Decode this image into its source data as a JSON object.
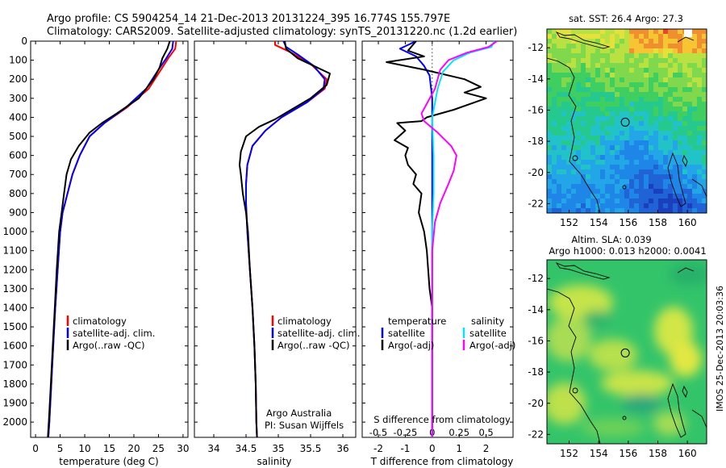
{
  "header": {
    "line1": "Argo profile: CS 5904254_14 21-Dec-2013 20131224_395 16.774S 155.797E",
    "line2": "Climatology: CARS2009. Satellite-adjusted climatology: synTS_20131220.nc (1.2d earlier)"
  },
  "colors": {
    "climatology": "#ff0000",
    "satellite": "#0000ff",
    "argo": "#000000",
    "sal_sat": "#00e5ff",
    "sal_argo": "#ff00ff"
  },
  "chart_data": [
    {
      "type": "line",
      "name": "temperature-profile",
      "xlabel": "temperature (deg C)",
      "xlim": [
        -1,
        31
      ],
      "ylim": [
        0,
        2080
      ],
      "y_inverted": true,
      "xticks": [
        "0",
        "5",
        "10",
        "15",
        "20",
        "25",
        "30"
      ],
      "xtick_values": [
        0,
        5,
        10,
        15,
        20,
        25,
        30
      ],
      "yticks": [
        "0",
        "100",
        "200",
        "300",
        "400",
        "500",
        "600",
        "700",
        "800",
        "900",
        "1000",
        "1100",
        "1200",
        "1300",
        "1400",
        "1500",
        "1600",
        "1700",
        "1800",
        "1900",
        "2000"
      ],
      "ytick_values": [
        0,
        100,
        200,
        300,
        400,
        500,
        600,
        700,
        800,
        900,
        1000,
        1100,
        1200,
        1300,
        1400,
        1500,
        1600,
        1700,
        1800,
        1900,
        2000
      ],
      "legend": [
        "climatology",
        "satellite-adj. clim.",
        "Argo(..raw -QC)"
      ],
      "series": [
        {
          "name": "climatology",
          "color": "#ff0000",
          "points": [
            [
              28.6,
              0
            ],
            [
              28.4,
              40
            ],
            [
              27.0,
              90
            ],
            [
              25.5,
              150
            ],
            [
              23.0,
              250
            ],
            [
              18.5,
              350
            ],
            [
              14.0,
              430
            ],
            [
              11.0,
              500
            ],
            [
              9.0,
              600
            ],
            [
              7.5,
              700
            ],
            [
              6.5,
              800
            ],
            [
              5.5,
              900
            ],
            [
              5.0,
              1000
            ],
            [
              4.5,
              1200
            ],
            [
              4.0,
              1400
            ],
            [
              3.6,
              1600
            ],
            [
              3.2,
              1800
            ],
            [
              2.8,
              2000
            ],
            [
              2.6,
              2080
            ]
          ]
        },
        {
          "name": "satellite-adj. clim.",
          "color": "#0000ff",
          "points": [
            [
              28.0,
              0
            ],
            [
              27.8,
              40
            ],
            [
              26.6,
              90
            ],
            [
              25.0,
              150
            ],
            [
              22.5,
              250
            ],
            [
              18.3,
              350
            ],
            [
              14.0,
              430
            ],
            [
              11.0,
              500
            ],
            [
              9.0,
              600
            ],
            [
              7.5,
              700
            ],
            [
              6.5,
              800
            ],
            [
              5.5,
              900
            ],
            [
              5.0,
              1000
            ],
            [
              4.5,
              1200
            ],
            [
              4.0,
              1400
            ],
            [
              3.6,
              1600
            ],
            [
              3.2,
              1800
            ],
            [
              2.8,
              2000
            ],
            [
              2.6,
              2080
            ]
          ]
        },
        {
          "name": "Argo(..raw -QC)",
          "color": "#000000",
          "points": [
            [
              27.3,
              0
            ],
            [
              26.8,
              40
            ],
            [
              25.8,
              90
            ],
            [
              25.2,
              140
            ],
            [
              24.0,
              200
            ],
            [
              21.0,
              300
            ],
            [
              16.5,
              380
            ],
            [
              13.5,
              430
            ],
            [
              11.0,
              480
            ],
            [
              8.8,
              550
            ],
            [
              7.2,
              620
            ],
            [
              6.3,
              700
            ],
            [
              5.8,
              800
            ],
            [
              5.3,
              900
            ],
            [
              4.8,
              1000
            ],
            [
              4.3,
              1200
            ],
            [
              3.9,
              1400
            ],
            [
              3.5,
              1600
            ],
            [
              3.1,
              1800
            ],
            [
              2.7,
              2000
            ],
            [
              2.5,
              2080
            ]
          ]
        }
      ]
    },
    {
      "type": "line",
      "name": "salinity-profile",
      "xlabel": "salinity",
      "xlim": [
        33.7,
        36.2
      ],
      "ylim": [
        0,
        2080
      ],
      "y_inverted": true,
      "xticks": [
        "34",
        "34.5",
        "35",
        "35.5",
        "36"
      ],
      "xtick_values": [
        34,
        34.5,
        35,
        35.5,
        36
      ],
      "legend": [
        "climatology",
        "satellite-adj. clim.",
        "Argo(..raw -QC)"
      ],
      "annotation": [
        "Argo Australia",
        "PI: Susan Wijffels"
      ],
      "series": [
        {
          "name": "climatology",
          "color": "#ff0000",
          "points": [
            [
              34.95,
              0
            ],
            [
              34.95,
              20
            ],
            [
              35.2,
              60
            ],
            [
              35.5,
              120
            ],
            [
              35.75,
              200
            ],
            [
              35.72,
              250
            ],
            [
              35.45,
              320
            ],
            [
              35.05,
              400
            ],
            [
              34.8,
              470
            ],
            [
              34.6,
              550
            ],
            [
              34.52,
              650
            ],
            [
              34.5,
              750
            ],
            [
              34.5,
              850
            ],
            [
              34.52,
              1000
            ],
            [
              34.56,
              1200
            ],
            [
              34.6,
              1400
            ],
            [
              34.63,
              1600
            ],
            [
              34.65,
              1800
            ],
            [
              34.66,
              2000
            ],
            [
              34.67,
              2080
            ]
          ]
        },
        {
          "name": "satellite-adj. clim.",
          "color": "#0000ff",
          "points": [
            [
              35.08,
              0
            ],
            [
              35.12,
              30
            ],
            [
              35.3,
              70
            ],
            [
              35.55,
              130
            ],
            [
              35.72,
              200
            ],
            [
              35.7,
              250
            ],
            [
              35.45,
              320
            ],
            [
              35.05,
              400
            ],
            [
              34.8,
              470
            ],
            [
              34.6,
              550
            ],
            [
              34.52,
              650
            ],
            [
              34.5,
              750
            ],
            [
              34.5,
              850
            ],
            [
              34.52,
              1000
            ],
            [
              34.56,
              1200
            ],
            [
              34.6,
              1400
            ],
            [
              34.63,
              1600
            ],
            [
              34.65,
              1800
            ],
            [
              34.66,
              2000
            ],
            [
              34.67,
              2080
            ]
          ]
        },
        {
          "name": "Argo(..raw -QC)",
          "color": "#000000",
          "points": [
            [
              35.1,
              0
            ],
            [
              35.12,
              40
            ],
            [
              35.3,
              90
            ],
            [
              35.55,
              130
            ],
            [
              35.8,
              170
            ],
            [
              35.75,
              230
            ],
            [
              35.5,
              300
            ],
            [
              35.2,
              360
            ],
            [
              34.95,
              410
            ],
            [
              34.7,
              450
            ],
            [
              34.5,
              500
            ],
            [
              34.42,
              580
            ],
            [
              34.4,
              650
            ],
            [
              34.42,
              700
            ],
            [
              34.45,
              800
            ],
            [
              34.5,
              900
            ],
            [
              34.53,
              1000
            ],
            [
              34.56,
              1200
            ],
            [
              34.6,
              1400
            ],
            [
              34.63,
              1600
            ],
            [
              34.65,
              1800
            ],
            [
              34.66,
              2000
            ],
            [
              34.67,
              2080
            ]
          ]
        }
      ]
    },
    {
      "type": "line",
      "name": "difference-profile",
      "xlabel": "T difference from climatology",
      "xlabel_top": "S difference from climatology",
      "xlim": [
        -2.6,
        3.0
      ],
      "ylim": [
        0,
        2080
      ],
      "y_inverted": true,
      "xticks": [
        "-2",
        "-1",
        "0",
        "1",
        "2"
      ],
      "xtick_values": [
        -2,
        -1,
        0,
        1,
        2
      ],
      "sticks": [
        "-0.5",
        "-0.25",
        "0",
        "0.25",
        "0.5"
      ],
      "stick_t_equivalent": [
        -2,
        -1,
        0,
        1,
        2
      ],
      "legend_groups": [
        "temperature",
        "salinity"
      ],
      "legend_temperature": [
        "satellite",
        "Argo(-adj)"
      ],
      "legend_salinity": [
        "satellite",
        "Argo(-adj)"
      ],
      "series": [
        {
          "name": "temperature satellite",
          "color": "#0000ff",
          "points": [
            [
              -0.6,
              0
            ],
            [
              -1.2,
              40
            ],
            [
              -0.6,
              80
            ],
            [
              -0.3,
              130
            ],
            [
              -0.1,
              180
            ],
            [
              0,
              300
            ],
            [
              0,
              2080
            ]
          ]
        },
        {
          "name": "temperature Argo(-adj)",
          "color": "#000000",
          "points": [
            [
              -0.6,
              0
            ],
            [
              -0.9,
              50
            ],
            [
              -0.3,
              80
            ],
            [
              -1.7,
              110
            ],
            [
              -0.3,
              150
            ],
            [
              1.2,
              200
            ],
            [
              1.8,
              240
            ],
            [
              1.2,
              270
            ],
            [
              2.0,
              300
            ],
            [
              0.8,
              360
            ],
            [
              -0.2,
              400
            ],
            [
              -0.4,
              420
            ],
            [
              -1.3,
              430
            ],
            [
              -1.0,
              470
            ],
            [
              -1.4,
              520
            ],
            [
              -0.9,
              560
            ],
            [
              -1.0,
              600
            ],
            [
              -0.9,
              650
            ],
            [
              -0.6,
              700
            ],
            [
              -0.7,
              750
            ],
            [
              -0.4,
              800
            ],
            [
              -0.5,
              900
            ],
            [
              -0.3,
              1000
            ],
            [
              -0.2,
              1100
            ],
            [
              -0.15,
              1200
            ],
            [
              -0.1,
              1300
            ],
            [
              0,
              1400
            ],
            [
              0,
              2080
            ]
          ]
        },
        {
          "name": "salinity satellite",
          "color": "#00e5ff",
          "points": [
            [
              2.3,
              0
            ],
            [
              2.2,
              30
            ],
            [
              1.4,
              60
            ],
            [
              0.8,
              100
            ],
            [
              0.4,
              160
            ],
            [
              0.2,
              250
            ],
            [
              0,
              400
            ],
            [
              0.05,
              600
            ],
            [
              0.05,
              800
            ],
            [
              0,
              1000
            ],
            [
              0,
              2080
            ]
          ]
        },
        {
          "name": "salinity Argo(-adj)",
          "color": "#ff00ff",
          "points": [
            [
              2.4,
              0
            ],
            [
              2.1,
              30
            ],
            [
              1.3,
              60
            ],
            [
              0.6,
              100
            ],
            [
              0.3,
              150
            ],
            [
              0.1,
              250
            ],
            [
              -0.4,
              380
            ],
            [
              -0.3,
              420
            ],
            [
              0.2,
              480
            ],
            [
              0.7,
              550
            ],
            [
              0.9,
              600
            ],
            [
              0.8,
              680
            ],
            [
              0.6,
              750
            ],
            [
              0.3,
              850
            ],
            [
              0.1,
              950
            ],
            [
              0,
              1100
            ],
            [
              0,
              2080
            ]
          ]
        }
      ]
    },
    {
      "type": "heatmap",
      "name": "sst-map",
      "title": "sat. SST: 26.4  Argo: 27.3",
      "xticks": [
        "152",
        "154",
        "156",
        "158",
        "160"
      ],
      "xtick_values": [
        152,
        154,
        156,
        158,
        160
      ],
      "yticks": [
        "-12",
        "-14",
        "-16",
        "-18",
        "-20",
        "-22"
      ],
      "ytick_values": [
        -12,
        -14,
        -16,
        -18,
        -20,
        -22
      ],
      "xlim": [
        150.5,
        161.3
      ],
      "ylim": [
        -22.6,
        -10.8
      ],
      "float_position": [
        155.797,
        -16.774
      ]
    },
    {
      "type": "heatmap",
      "name": "sla-map",
      "title": "Altim. SLA: 0.039",
      "subtitle": "Argo h1000: 0.013 h2000: 0.0041",
      "xticks": [
        "152",
        "154",
        "156",
        "158",
        "160"
      ],
      "xtick_values": [
        152,
        154,
        156,
        158,
        160
      ],
      "yticks": [
        "-12",
        "-14",
        "-16",
        "-18",
        "-20",
        "-22"
      ],
      "ytick_values": [
        -12,
        -14,
        -16,
        -18,
        -20,
        -22
      ],
      "xlim": [
        150.5,
        161.3
      ],
      "ylim": [
        -22.6,
        -10.8
      ],
      "float_position": [
        155.797,
        -16.774
      ]
    }
  ],
  "stamp": "IMOS 25-Dec-2013 20:03:36"
}
